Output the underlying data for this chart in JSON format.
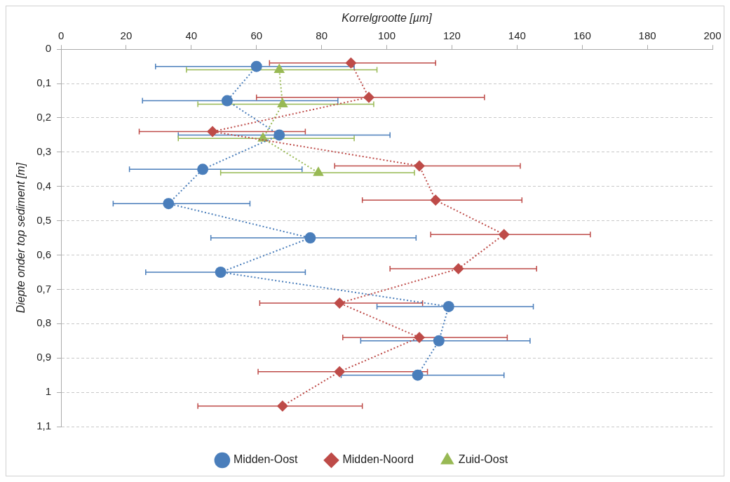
{
  "chart_data": {
    "type": "line",
    "xlabel": "Korrelgrootte [µm]",
    "ylabel": "Diepte onder top sediment [m]",
    "xlim": [
      0,
      200
    ],
    "xticks": [
      0,
      20,
      40,
      60,
      80,
      100,
      120,
      140,
      160,
      180,
      200
    ],
    "ylim": [
      1.1,
      0
    ],
    "yticks": [
      0,
      {
        "value": 0.1,
        "label": "0,1"
      },
      {
        "value": 0.2,
        "label": "0,2"
      },
      {
        "value": 0.3,
        "label": "0,3"
      },
      {
        "value": 0.4,
        "label": "0,4"
      },
      {
        "value": 0.5,
        "label": "0,5"
      },
      {
        "value": 0.6,
        "label": "0,6"
      },
      {
        "value": 0.7,
        "label": "0,7"
      },
      {
        "value": 0.8,
        "label": "0,8"
      },
      {
        "value": 0.9,
        "label": "0,9"
      },
      1,
      {
        "value": 1.1,
        "label": "1,1"
      }
    ],
    "grid": "y",
    "legend": "bottom",
    "line_style": "dotted",
    "series": [
      {
        "name": "Midden-Oost",
        "color": "#4a7ebb",
        "marker": "circle",
        "x": [
          60,
          51,
          67,
          43.5,
          33,
          76.5,
          49,
          119,
          116,
          109.5
        ],
        "values": [
          0.05,
          0.15,
          0.25,
          0.35,
          0.45,
          0.55,
          0.65,
          0.75,
          0.85,
          0.95
        ],
        "xerrors": [
          [
            29,
            90
          ],
          [
            25,
            85
          ],
          [
            36,
            101
          ],
          [
            21,
            74
          ],
          [
            16,
            58
          ],
          [
            46,
            109
          ],
          [
            26,
            75
          ],
          [
            97,
            145
          ],
          [
            92,
            144
          ],
          [
            86,
            136
          ]
        ]
      },
      {
        "name": "Midden-Noord",
        "color": "#be4b48",
        "marker": "diamond",
        "x": [
          89,
          94.5,
          46.5,
          110,
          115,
          136,
          122,
          85.5,
          110,
          85.5,
          68
        ],
        "values": [
          0.04,
          0.14,
          0.24,
          0.34,
          0.44,
          0.54,
          0.64,
          0.74,
          0.84,
          0.94,
          1.04
        ],
        "xerrors": [
          [
            64,
            115
          ],
          [
            60,
            130
          ],
          [
            24,
            75
          ],
          [
            84,
            141
          ],
          [
            92.5,
            141.5
          ],
          [
            113.5,
            162.5
          ],
          [
            101,
            146
          ],
          [
            61,
            111
          ],
          [
            86.5,
            137
          ],
          [
            60.5,
            112.5
          ],
          [
            42,
            92.5
          ]
        ]
      },
      {
        "name": "Zuid-Oost",
        "color": "#98b954",
        "marker": "triangle",
        "x": [
          67,
          68,
          62,
          79
        ],
        "values": [
          0.06,
          0.16,
          0.26,
          0.36
        ],
        "xerrors": [
          [
            38.5,
            97
          ],
          [
            42,
            96
          ],
          [
            36,
            90
          ],
          [
            49,
            108.5
          ]
        ]
      }
    ]
  }
}
